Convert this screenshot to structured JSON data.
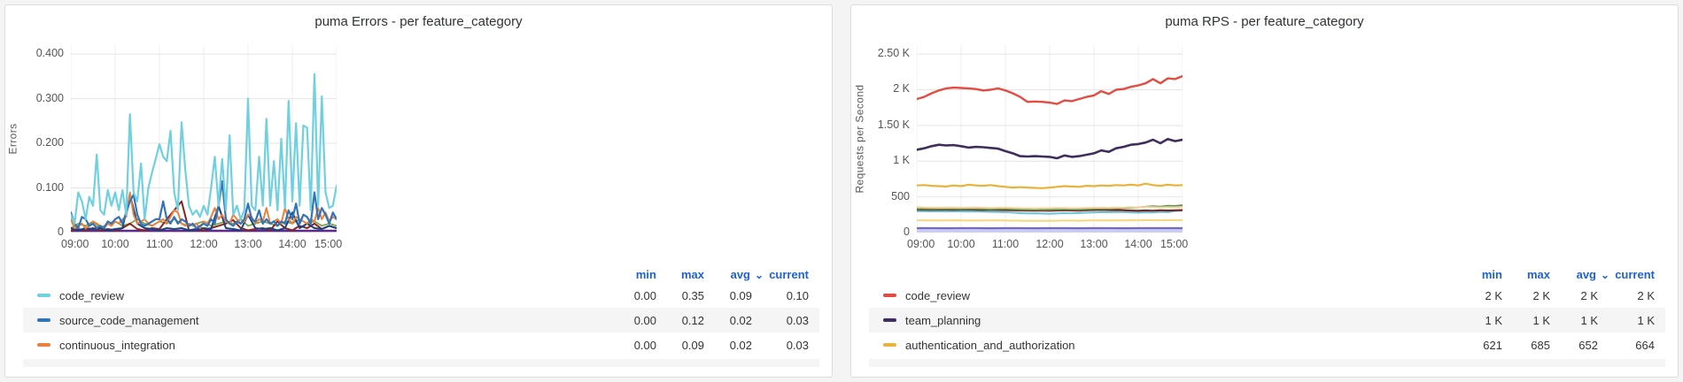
{
  "panels": [
    {
      "title": "puma Errors - per feature_category",
      "y_axis_label": "Errors",
      "legend": {
        "columns": [
          "min",
          "max",
          "avg",
          "current"
        ],
        "sorted_by": "avg",
        "rows": [
          {
            "label": "code_review",
            "color": "#6fd0e0",
            "min": "0.00",
            "max": "0.35",
            "avg": "0.09",
            "current": "0.10"
          },
          {
            "label": "source_code_management",
            "color": "#3274b7",
            "min": "0.00",
            "max": "0.12",
            "avg": "0.02",
            "current": "0.03"
          },
          {
            "label": "continuous_integration",
            "color": "#ea8140",
            "min": "0.00",
            "max": "0.09",
            "avg": "0.02",
            "current": "0.03"
          }
        ]
      }
    },
    {
      "title": "puma RPS - per feature_category",
      "y_axis_label": "Requests per Second",
      "legend": {
        "columns": [
          "min",
          "max",
          "avg",
          "current"
        ],
        "sorted_by": "avg",
        "rows": [
          {
            "label": "code_review",
            "color": "#e24c42",
            "min": "2 K",
            "max": "2 K",
            "avg": "2 K",
            "current": "2 K"
          },
          {
            "label": "team_planning",
            "color": "#3f2d5d",
            "min": "1 K",
            "max": "1 K",
            "avg": "1 K",
            "current": "1 K"
          },
          {
            "label": "authentication_and_authorization",
            "color": "#e9b23a",
            "min": "621",
            "max": "685",
            "avg": "652",
            "current": "664"
          }
        ]
      }
    }
  ],
  "colors": {
    "header_link_blue": "#1f62d2",
    "grid_horizontal": "#e4e4e4",
    "grid_vertical": "#ececec",
    "panel_border": "#dcdcdc",
    "page_background": "#f4f4f4"
  },
  "chart_data": [
    {
      "type": "line",
      "title": "puma Errors - per feature_category",
      "xlabel": "",
      "ylabel": "Errors",
      "x_ticks": [
        "09:00",
        "10:00",
        "11:00",
        "12:00",
        "13:00",
        "14:00",
        "15:00"
      ],
      "x_range_hours": [
        9,
        15
      ],
      "ylim": [
        0,
        0.4
      ],
      "y_display_max": 0.42,
      "grid": true,
      "legend_position": "bottom-table",
      "y_ticks": [
        {
          "v": 0,
          "label": "0"
        },
        {
          "v": 0.1,
          "label": "0.100"
        },
        {
          "v": 0.2,
          "label": "0.200"
        },
        {
          "v": 0.3,
          "label": "0.300"
        },
        {
          "v": 0.4,
          "label": "0.400"
        }
      ],
      "series": [
        {
          "name": "unlabeled_purple_baseline",
          "color": "#5d2a8a",
          "w": 2.4,
          "values": [
            0.004,
            0.004
          ]
        },
        {
          "name": "unlabeled_green",
          "color": "#7ba84e",
          "w": 1.8,
          "values": [
            0.01,
            0.02,
            0.015,
            0.025,
            0.01,
            0.02,
            0.025,
            0.015,
            0.02,
            0.03,
            0.02,
            0.015,
            0.025,
            0.02,
            0.03,
            0.02,
            0.015,
            0.02,
            0.025,
            0.015,
            0.02,
            0.025,
            0.02,
            0.03,
            0.015,
            0.02,
            0.025,
            0.02,
            0.015,
            0.025,
            0.02,
            0.03,
            0.02,
            0.025,
            0.015,
            0.02,
            0.015
          ]
        },
        {
          "name": "unlabeled_dark_red",
          "color": "#8a2420",
          "w": 2,
          "values": [
            0.005,
            0.008,
            0.005,
            0.01,
            0.005,
            0.008,
            0.005,
            0.01,
            0.02,
            0.008,
            0.005,
            0.01,
            0.008,
            0.03,
            0.05,
            0.07,
            0.005,
            0.008,
            0.005,
            0.01,
            0.015,
            0.02,
            0.028,
            0.01,
            0.005,
            0.008,
            0.01,
            0.005,
            0.025,
            0.01,
            0.005,
            0.015,
            0.01,
            0.02,
            0.008,
            0.015,
            0.01
          ]
        },
        {
          "name": "unlabeled_dark_navy",
          "color": "#17437f",
          "w": 2,
          "values": [
            0.01,
            0.005,
            0.01,
            0.008,
            0.01,
            0.005,
            0.008,
            0.01,
            0.085,
            0.02,
            0.01,
            0.008,
            0.005,
            0.01,
            0.008,
            0.01,
            0.005,
            0.008,
            0.01,
            0.008,
            0.06,
            0.01,
            0.008,
            0.005,
            0.04,
            0.01,
            0.008,
            0.01,
            0.005,
            0.01,
            0.045,
            0.01,
            0.02,
            0.01,
            0.008,
            0.015,
            0.01
          ]
        },
        {
          "name": "continuous_integration",
          "color": "#ea8140",
          "w": 2,
          "values": [
            0.03,
            0.01,
            0.015,
            0.02,
            0.01,
            0.015,
            0.025,
            0.02,
            0.015,
            0.01,
            0.02,
            0.015,
            0.025,
            0.02,
            0.03,
            0.035,
            0.09,
            0.04,
            0.02,
            0.025,
            0.03,
            0.02,
            0.015,
            0.02,
            0.025,
            0.03,
            0.02,
            0.035,
            0.05,
            0.045,
            0.02,
            0.015,
            0.02,
            0.015,
            0.02,
            0.01,
            0.025,
            0.02,
            0.035,
            0.055,
            0.03,
            0.04,
            0.025,
            0.02,
            0.04,
            0.03,
            0.02,
            0.025,
            0.04,
            0.035,
            0.02,
            0.03,
            0.025,
            0.055,
            0.02,
            0.025,
            0.03,
            0.02,
            0.055,
            0.03,
            0.02,
            0.035,
            0.03,
            0.025,
            0.02,
            0.03,
            0.025,
            0.055,
            0.03,
            0.045,
            0.025,
            0.035,
            0.03
          ]
        },
        {
          "name": "source_code_management",
          "color": "#3274b7",
          "w": 2.2,
          "values": [
            0.045,
            0.02,
            0.01,
            0.035,
            0.03,
            0.015,
            0.02,
            0.01,
            0.015,
            0.01,
            0.025,
            0.02,
            0.03,
            0.035,
            0.02,
            0.045,
            0.07,
            0.085,
            0.04,
            0.02,
            0.015,
            0.02,
            0.025,
            0.03,
            0.03,
            0.07,
            0.03,
            0.02,
            0.035,
            0.02,
            0.03,
            0.025,
            0.015,
            0.02,
            0.01,
            0.015,
            0.02,
            0.015,
            0.03,
            0.02,
            0.06,
            0.115,
            0.03,
            0.02,
            0.015,
            0.025,
            0.02,
            0.03,
            0.065,
            0.03,
            0.025,
            0.05,
            0.02,
            0.03,
            0.02,
            0.025,
            0.015,
            0.025,
            0.02,
            0.05,
            0.03,
            0.065,
            0.02,
            0.04,
            0.035,
            0.02,
            0.09,
            0.03,
            0.055,
            0.04,
            0.02,
            0.045,
            0.03
          ]
        },
        {
          "name": "code_review",
          "color": "#6fd0e0",
          "w": 2.2,
          "values": [
            0.04,
            0.02,
            0.09,
            0.07,
            0.03,
            0.08,
            0.06,
            0.175,
            0.05,
            0.04,
            0.095,
            0.06,
            0.09,
            0.05,
            0.095,
            0.04,
            0.265,
            0.09,
            0.07,
            0.155,
            0.03,
            0.1,
            0.135,
            0.165,
            0.198,
            0.17,
            0.16,
            0.228,
            0.09,
            0.05,
            0.247,
            0.14,
            0.06,
            0.04,
            0.05,
            0.035,
            0.06,
            0.04,
            0.1,
            0.17,
            0.06,
            0.165,
            0.05,
            0.218,
            0.04,
            0.06,
            0.03,
            0.05,
            0.3,
            0.06,
            0.05,
            0.17,
            0.06,
            0.255,
            0.06,
            0.16,
            0.05,
            0.21,
            0.055,
            0.295,
            0.07,
            0.245,
            0.06,
            0.24,
            0.235,
            0.05,
            0.355,
            0.06,
            0.305,
            0.09,
            0.055,
            0.06,
            0.105
          ]
        }
      ]
    },
    {
      "type": "line",
      "title": "puma RPS - per feature_category",
      "xlabel": "",
      "ylabel": "Requests per Second",
      "x_ticks": [
        "09:00",
        "10:00",
        "11:00",
        "12:00",
        "13:00",
        "14:00",
        "15:00"
      ],
      "x_range_hours": [
        9,
        15
      ],
      "ylim": [
        0,
        2500
      ],
      "y_display_max": 2625,
      "grid": true,
      "legend_position": "bottom-table",
      "y_ticks": [
        {
          "v": 0,
          "label": "0"
        },
        {
          "v": 500,
          "label": "500"
        },
        {
          "v": 1000,
          "label": "1 K"
        },
        {
          "v": 1500,
          "label": "1.50 K"
        },
        {
          "v": 2000,
          "label": "2 K"
        },
        {
          "v": 2500,
          "label": "2.50 K"
        }
      ],
      "series": [
        {
          "name": "unlabeled_lavender_band",
          "color": "#c9cdf2",
          "w": 5,
          "values": [
            30,
            30
          ]
        },
        {
          "name": "unlabeled_purple",
          "color": "#7568c9",
          "w": 2.2,
          "values": [
            62,
            62,
            61,
            62,
            62,
            61,
            62,
            62,
            61,
            62,
            62,
            61,
            62,
            62,
            61,
            62,
            62,
            62,
            62
          ]
        },
        {
          "name": "unlabeled_pale_yellow",
          "color": "#f5d879",
          "w": 2,
          "values": [
            172,
            170,
            171,
            169,
            170,
            172,
            170,
            168,
            170,
            169,
            171,
            170,
            168,
            167,
            166,
            165,
            166,
            165,
            164,
            166,
            168,
            167,
            166,
            168,
            170,
            171,
            170,
            172,
            171,
            173,
            172,
            174,
            173,
            172,
            174,
            173,
            175
          ]
        },
        {
          "name": "unlabeled_cyan",
          "color": "#68c5dc",
          "w": 2,
          "values": [
            298,
            300,
            296,
            298,
            295,
            298,
            296,
            294,
            296,
            292,
            290,
            288,
            285,
            280,
            272,
            268,
            270,
            266,
            264,
            268,
            272,
            270,
            274,
            278,
            282,
            286,
            284,
            288,
            285,
            282,
            278,
            284,
            280,
            288,
            285,
            300,
            308
          ]
        },
        {
          "name": "unlabeled_dark_red",
          "color": "#7c2220",
          "w": 2.2,
          "values": [
            322,
            320,
            318,
            322,
            320,
            318,
            320,
            322,
            318,
            316,
            318,
            316,
            314,
            312,
            310,
            308,
            310,
            308,
            306,
            310,
            312,
            310,
            308,
            312,
            316,
            318,
            314,
            316,
            312,
            308,
            304,
            310,
            306,
            312,
            308,
            312,
            315
          ]
        },
        {
          "name": "unlabeled_green",
          "color": "#5e9150",
          "w": 2,
          "values": [
            330,
            332,
            328,
            330,
            332,
            330,
            328,
            332,
            330,
            328,
            326,
            328,
            330,
            326,
            322,
            320,
            322,
            320,
            318,
            322,
            326,
            324,
            322,
            326,
            330,
            334,
            332,
            338,
            342,
            348,
            352,
            360,
            368,
            362,
            375,
            372,
            383
          ]
        },
        {
          "name": "unlabeled_peach",
          "color": "#f3d5a0",
          "w": 2,
          "values": [
            355,
            352,
            350,
            348,
            352,
            350,
            348,
            350,
            352,
            348,
            345,
            348,
            350,
            345,
            342,
            340,
            338,
            340,
            342,
            345,
            343,
            340,
            342,
            345,
            348,
            350,
            348,
            352,
            350,
            355,
            352,
            358,
            355,
            352,
            356,
            354,
            358
          ]
        },
        {
          "name": "authentication_and_authorization",
          "color": "#e9b23a",
          "w": 2.2,
          "values": [
            660,
            665,
            655,
            650,
            645,
            660,
            650,
            670,
            660,
            655,
            665,
            650,
            640,
            630,
            635,
            630,
            625,
            621,
            630,
            640,
            650,
            645,
            640,
            655,
            650,
            660,
            655,
            665,
            660,
            670,
            660,
            685,
            665,
            655,
            670,
            660,
            664
          ]
        },
        {
          "name": "team_planning",
          "color": "#3f2d5d",
          "w": 2.6,
          "values": [
            1160,
            1180,
            1210,
            1230,
            1220,
            1225,
            1210,
            1190,
            1200,
            1195,
            1185,
            1175,
            1140,
            1110,
            1070,
            1065,
            1070,
            1065,
            1060,
            1040,
            1080,
            1060,
            1070,
            1090,
            1110,
            1150,
            1130,
            1180,
            1200,
            1230,
            1240,
            1260,
            1300,
            1250,
            1310,
            1280,
            1300
          ]
        },
        {
          "name": "code_review",
          "color": "#e24c42",
          "w": 2.4,
          "values": [
            1870,
            1900,
            1950,
            1990,
            2020,
            2030,
            2025,
            2020,
            2010,
            1990,
            2000,
            2020,
            1990,
            1950,
            1900,
            1830,
            1835,
            1830,
            1820,
            1800,
            1850,
            1840,
            1870,
            1900,
            1920,
            1980,
            1940,
            2000,
            2010,
            2040,
            2060,
            2090,
            2150,
            2090,
            2160,
            2150,
            2190
          ]
        }
      ]
    }
  ]
}
